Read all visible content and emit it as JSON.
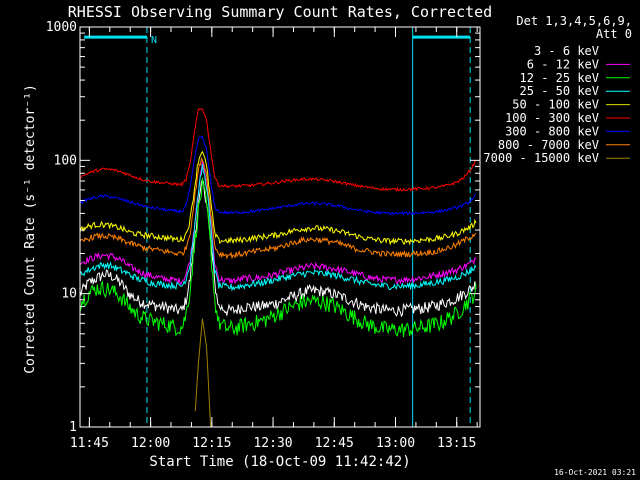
{
  "chart_data": {
    "type": "line",
    "title": "RHESSI Observing Summary Count Rates, Corrected",
    "xlabel": "Start Time (18-Oct-09 11:42:42)",
    "ylabel": "Corrected Count Rate (s⁻¹ detector⁻¹)",
    "y_scale": "log",
    "ylim": [
      1,
      1000
    ],
    "xlim_minutes": [
      0,
      98
    ],
    "y_ticks": [
      {
        "v": 1,
        "label": "1"
      },
      {
        "v": 10,
        "label": "10"
      },
      {
        "v": 100,
        "label": "100"
      },
      {
        "v": 1000,
        "label": "1000"
      }
    ],
    "x_ticks": [
      {
        "t": 2.3,
        "label": "11:45"
      },
      {
        "t": 17.3,
        "label": "12:00"
      },
      {
        "t": 32.3,
        "label": "12:15"
      },
      {
        "t": 47.3,
        "label": "12:30"
      },
      {
        "t": 62.3,
        "label": "12:45"
      },
      {
        "t": 77.3,
        "label": "13:00"
      },
      {
        "t": 92.3,
        "label": "13:15"
      }
    ],
    "legend_header": [
      "Det 1,3,4,5,6,9,",
      "Att 0"
    ],
    "legend_position": "right",
    "timestamp": "16-Oct-2021 03:21",
    "axis_color": "#ffffff",
    "night_marker_color": "#00e0f0",
    "markers": {
      "n_label": "N",
      "dashed_lines_t": [
        16.4,
        95.6
      ],
      "solid_lines_t": [
        81.5
      ],
      "bars": [
        [
          1,
          16.4
        ],
        [
          81.5,
          95.6
        ]
      ],
      "bar_value": 840
    },
    "time_points": [
      0,
      2,
      4,
      6,
      8,
      10,
      12,
      14,
      16,
      18,
      20,
      22,
      24,
      25,
      26,
      27,
      28,
      29,
      30,
      31,
      32,
      33,
      34,
      36,
      38,
      40,
      42,
      44,
      46,
      48,
      50,
      52,
      54,
      56,
      58,
      60,
      62,
      64,
      66,
      68,
      70,
      72,
      74,
      76,
      78,
      80,
      82,
      84,
      86,
      88,
      90,
      92,
      94,
      95,
      96,
      97
    ],
    "series": [
      {
        "name": "3 - 6 keV",
        "color": "#ffffff",
        "line_color": "#000000",
        "noise": 0.1,
        "values": [
          10,
          12,
          13,
          14,
          13.5,
          12,
          10,
          9,
          8.5,
          8.2,
          8,
          7.8,
          7.5,
          7.5,
          9,
          13,
          25,
          45,
          70,
          50,
          25,
          12,
          8,
          7.5,
          7.5,
          8,
          8,
          8,
          8.2,
          8.5,
          9,
          9.5,
          10,
          10.5,
          10.5,
          10.3,
          10,
          9.5,
          9,
          8.5,
          8,
          7.8,
          7.6,
          7.5,
          7.5,
          7.6,
          7.7,
          7.8,
          8,
          8.3,
          8.7,
          9.2,
          10,
          10.5,
          11,
          12
        ]
      },
      {
        "name": "6 - 12 keV",
        "color": "#ff00ff",
        "line_color": "#ff00ff",
        "noise": 0.06,
        "values": [
          17,
          18,
          19,
          19.5,
          19,
          18,
          16,
          15,
          14,
          13.5,
          13,
          12.8,
          12.5,
          12.5,
          14,
          18,
          32,
          60,
          95,
          70,
          35,
          17,
          13,
          12.5,
          12.5,
          13,
          13,
          13.2,
          13.5,
          14,
          14.5,
          15,
          15.5,
          16,
          16,
          15.8,
          15.5,
          15,
          14.5,
          14,
          13.5,
          13,
          12.8,
          12.7,
          12.7,
          12.8,
          13,
          13.2,
          13.5,
          14,
          14.5,
          15,
          16,
          16.5,
          17,
          19
        ]
      },
      {
        "name": "12 - 25 keV",
        "color": "#00ff00",
        "line_color": "#00ff00",
        "noise": 0.14,
        "values": [
          8.5,
          10,
          11,
          11,
          10.5,
          9.5,
          8,
          7,
          6.5,
          6.2,
          6,
          5.8,
          5.6,
          5.6,
          7,
          11,
          22,
          42,
          65,
          47,
          22,
          9,
          6,
          5.5,
          5.5,
          5.8,
          6,
          6.2,
          6.5,
          7,
          7.5,
          8,
          8.5,
          8.8,
          8.8,
          8.6,
          8.2,
          7.6,
          7,
          6.5,
          6,
          5.7,
          5.5,
          5.4,
          5.4,
          5.4,
          5.5,
          5.6,
          5.8,
          6,
          6.5,
          7,
          8,
          8.8,
          9.5,
          10.5
        ]
      },
      {
        "name": "25 - 50 keV",
        "color": "#00ffff",
        "line_color": "#00ffff",
        "noise": 0.06,
        "values": [
          14,
          15,
          16,
          16.5,
          16,
          15,
          14,
          13,
          12.5,
          12,
          11.8,
          11.6,
          11.5,
          11.5,
          13,
          17,
          30,
          58,
          90,
          65,
          32,
          15,
          11.5,
          11.2,
          11.2,
          11.5,
          11.8,
          12,
          12.4,
          12.8,
          13.2,
          13.6,
          14,
          14.3,
          14.3,
          14.1,
          13.8,
          13.4,
          13,
          12.5,
          12,
          11.7,
          11.5,
          11.4,
          11.4,
          11.4,
          11.5,
          11.7,
          12,
          12.3,
          12.7,
          13.2,
          14,
          14.5,
          15,
          16
        ]
      },
      {
        "name": "50 - 100 keV",
        "color": "#ffff00",
        "line_color": "#e0e000",
        "noise": 0.05,
        "values": [
          30,
          32,
          33,
          33,
          32,
          31,
          29,
          28,
          27.5,
          27,
          26.5,
          26,
          25.5,
          25.5,
          28,
          36,
          60,
          100,
          120,
          90,
          50,
          28,
          25,
          25,
          25,
          25.5,
          26,
          26.5,
          27,
          27.5,
          28.5,
          29.5,
          30.5,
          31,
          31,
          30.5,
          30,
          29,
          28,
          27,
          26,
          25.5,
          25,
          24.8,
          24.8,
          24.8,
          25,
          25.3,
          25.7,
          26,
          27,
          28,
          30,
          31,
          32,
          35
        ]
      },
      {
        "name": "100 - 300 keV",
        "color": "#ff0000",
        "line_color": "#ff0000",
        "noise": 0.025,
        "values": [
          75,
          80,
          84,
          86,
          85,
          82,
          78,
          74,
          71,
          69,
          68,
          67,
          66,
          66,
          72,
          95,
          160,
          240,
          245,
          200,
          120,
          75,
          65,
          64,
          64,
          64.5,
          65,
          66,
          67,
          68,
          70,
          71,
          72,
          72.5,
          72,
          71,
          70,
          68,
          66,
          64.5,
          63,
          62,
          61,
          60.5,
          60.5,
          60.5,
          61,
          61.5,
          62,
          63,
          65,
          68,
          74,
          80,
          88,
          100
        ]
      },
      {
        "name": "300 - 800 keV",
        "color": "#0000ff",
        "line_color": "#0000ff",
        "noise": 0.025,
        "values": [
          48,
          51,
          53,
          54,
          53,
          51,
          49,
          47,
          45,
          44,
          43,
          42,
          41.5,
          41.5,
          46,
          62,
          100,
          145,
          150,
          120,
          70,
          45,
          41,
          40.5,
          40.5,
          41,
          41.5,
          42,
          43,
          44,
          45,
          46,
          47,
          47.5,
          47.5,
          47,
          46,
          45,
          43.5,
          42.5,
          41.5,
          40.8,
          40.3,
          40,
          40,
          40,
          40.2,
          40.6,
          41,
          41.5,
          42.5,
          44,
          46,
          48,
          51,
          55
        ]
      },
      {
        "name": "800 - 7000 keV",
        "color": "#ff8000",
        "line_color": "#ff8000",
        "noise": 0.05,
        "values": [
          24,
          26,
          27,
          27,
          26.5,
          25.5,
          24,
          23,
          22,
          21.5,
          21,
          20.5,
          20,
          20,
          22,
          29,
          50,
          85,
          105,
          78,
          42,
          23,
          20,
          19.5,
          19.5,
          20,
          20.5,
          21,
          21.5,
          22,
          23,
          24,
          25,
          25.5,
          25.5,
          25,
          24.5,
          23.5,
          22.5,
          21.5,
          21,
          20.5,
          20,
          19.8,
          19.8,
          19.8,
          20,
          20.2,
          20.5,
          21,
          22,
          23,
          25,
          26,
          27,
          29
        ]
      },
      {
        "name": "7000 - 15000 keV",
        "color": "#a08000",
        "line_color": "#a08000",
        "noise": 0,
        "values": [
          null,
          null,
          null,
          null,
          null,
          null,
          null,
          null,
          null,
          null,
          null,
          null,
          null,
          null,
          null,
          null,
          1,
          3,
          6.5,
          4,
          1,
          null,
          null,
          null,
          null,
          null,
          null,
          null,
          null,
          null,
          null,
          null,
          null,
          null,
          null,
          null,
          null,
          null,
          null,
          null,
          null,
          null,
          null,
          null,
          null,
          null,
          null,
          null,
          null,
          null,
          null,
          null,
          null,
          null,
          null,
          null
        ]
      }
    ]
  }
}
